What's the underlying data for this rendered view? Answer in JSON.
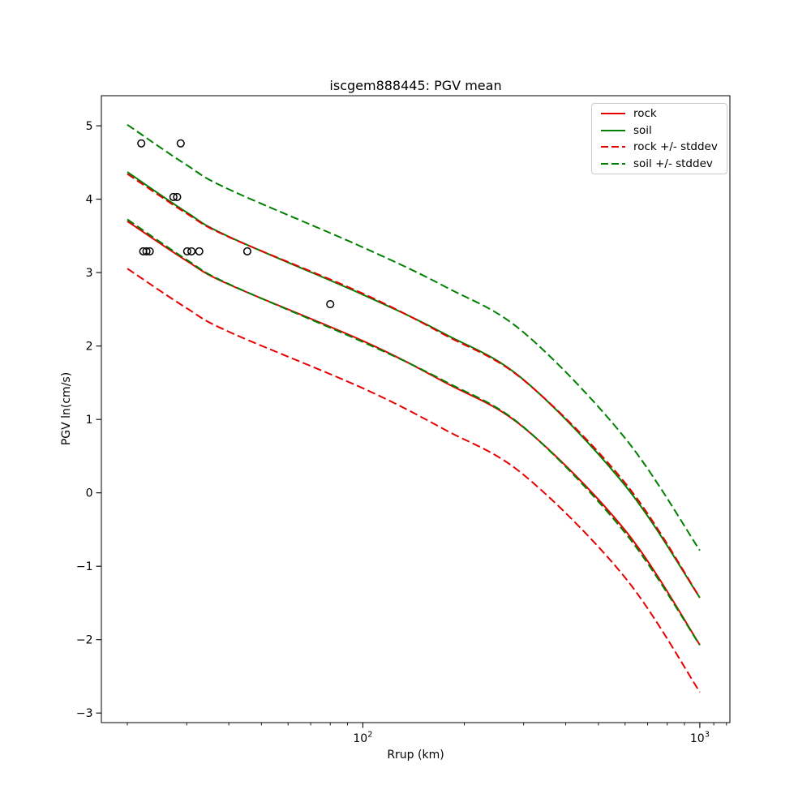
{
  "figure": {
    "background": "#ffffff"
  },
  "chart_data": {
    "type": "line",
    "title": "iscgem888445: PGV mean",
    "xlabel": "Rrup (km)",
    "ylabel": "PGV ln(cm/s)",
    "x_scale": "log",
    "xlim": [
      16.75,
      1228
    ],
    "ylim": [
      -3.13,
      5.41
    ],
    "grid": false,
    "colors": {
      "rock": "#e60000",
      "soil": "#008000",
      "observations": "#000000",
      "axes": "#000000"
    },
    "stddev": 0.645,
    "x_major_ticks": [
      {
        "value": 100,
        "base": "10",
        "exp": "2"
      },
      {
        "value": 1000,
        "base": "10",
        "exp": "3"
      }
    ],
    "x_minor_ticks": [
      20,
      30,
      40,
      50,
      60,
      70,
      80,
      90,
      200,
      300,
      400,
      500,
      600,
      700,
      800,
      900,
      1100,
      1200
    ],
    "y_ticks": [
      {
        "value": -3,
        "label": "−3"
      },
      {
        "value": -2,
        "label": "−2"
      },
      {
        "value": -1,
        "label": "−1"
      },
      {
        "value": 0,
        "label": "0"
      },
      {
        "value": 1,
        "label": "1"
      },
      {
        "value": 2,
        "label": "2"
      },
      {
        "value": 3,
        "label": "3"
      },
      {
        "value": 4,
        "label": "4"
      },
      {
        "value": 5,
        "label": "5"
      }
    ],
    "series": [
      {
        "name": "rock",
        "color": "#e60000",
        "dash": "solid",
        "x_km": [
          20,
          30,
          40,
          100,
          176,
          300,
          600,
          1000
        ],
        "y": [
          3.7,
          3.16,
          2.84,
          2.07,
          1.5,
          0.89,
          -0.51,
          -2.07
        ]
      },
      {
        "name": "soil",
        "color": "#008000",
        "dash": "solid",
        "x_km": [
          20,
          30,
          40,
          100,
          176,
          300,
          600,
          1000
        ],
        "y": [
          4.37,
          3.82,
          3.49,
          2.7,
          2.16,
          1.54,
          0.1,
          -1.43
        ]
      },
      {
        "name": "rock-stddev-band",
        "color": "#e60000",
        "dash": "dashed",
        "base": "rock",
        "offsets": [
          0.645,
          -0.645
        ]
      },
      {
        "name": "soil-stddev-band",
        "color": "#008000",
        "dash": "dashed",
        "base": "soil",
        "offsets": [
          0.645,
          -0.645
        ]
      }
    ],
    "scatter": {
      "name": "observations",
      "marker": "open-circle",
      "color": "#000000",
      "points_km_ln": [
        [
          22.0,
          4.76
        ],
        [
          28.8,
          4.76
        ],
        [
          27.4,
          4.03
        ],
        [
          28.1,
          4.03
        ],
        [
          22.3,
          3.29
        ],
        [
          22.8,
          3.29
        ],
        [
          23.3,
          3.29
        ],
        [
          30.1,
          3.29
        ],
        [
          31.0,
          3.29
        ],
        [
          32.7,
          3.29
        ],
        [
          45.4,
          3.29
        ],
        [
          80.0,
          2.57
        ]
      ]
    },
    "legend": {
      "position": "upper right",
      "entries": [
        {
          "label": "rock",
          "color": "#e60000",
          "dash": "solid"
        },
        {
          "label": "soil",
          "color": "#008000",
          "dash": "solid"
        },
        {
          "label": "rock +/- stddev",
          "color": "#e60000",
          "dash": "dashed"
        },
        {
          "label": "soil +/- stddev",
          "color": "#008000",
          "dash": "dashed"
        }
      ]
    }
  }
}
